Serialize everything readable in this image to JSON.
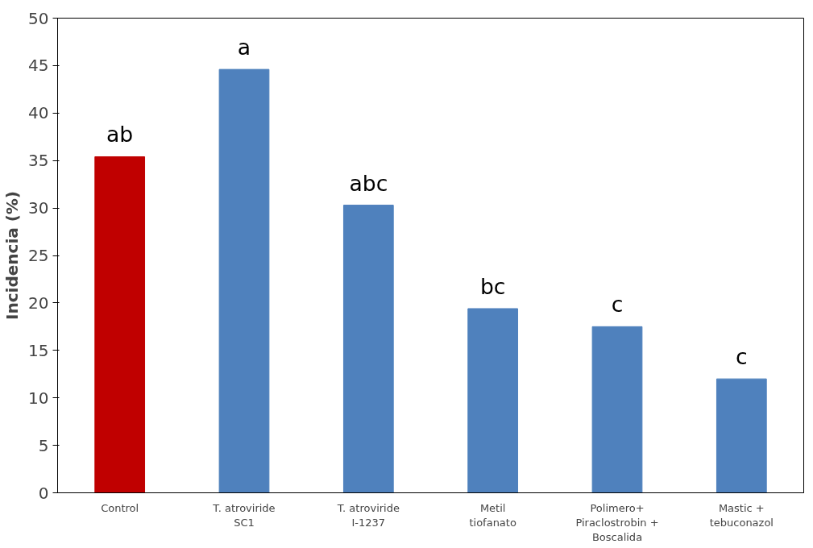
{
  "chart_data": {
    "type": "bar",
    "ylabel": "Incidencia (%)",
    "categories": [
      "Control",
      "T. atroviride\nSC1",
      "T. atroviride\nI-1237",
      "Metil\ntiofanato",
      "Polimero+\nPiraclostrobin +\nBoscalida",
      "Mastic +\ntebuconazol"
    ],
    "values": [
      35.4,
      44.6,
      30.3,
      19.4,
      17.5,
      12.0
    ],
    "colors": [
      "#c00000",
      "#4f81bd",
      "#4f81bd",
      "#4f81bd",
      "#4f81bd",
      "#4f81bd"
    ],
    "value_labels": [
      "ab",
      "a",
      "abc",
      "bc",
      "c",
      "c"
    ],
    "ylim": [
      0,
      50
    ],
    "yticks": [
      0,
      5,
      10,
      15,
      20,
      25,
      30,
      35,
      40,
      45,
      50
    ],
    "grid": false
  }
}
